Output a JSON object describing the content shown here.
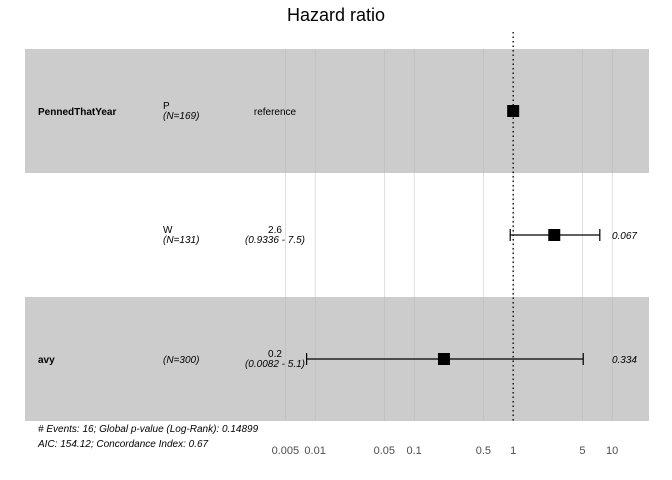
{
  "chart_data": {
    "type": "forest",
    "title": "Hazard ratio",
    "x_scale": "log",
    "xlim": [
      0.0035,
      17
    ],
    "x_ticks": [
      {
        "value": 0.005,
        "label": "0.005"
      },
      {
        "value": 0.01,
        "label": "0.01"
      },
      {
        "value": 0.05,
        "label": "0.05"
      },
      {
        "value": 0.1,
        "label": "0.1"
      },
      {
        "value": 0.5,
        "label": "0.5"
      },
      {
        "value": 1,
        "label": "1"
      },
      {
        "value": 5,
        "label": "5"
      },
      {
        "value": 10,
        "label": "10"
      }
    ],
    "reference_line": 1,
    "rows": [
      {
        "variable": "PennedThatYear",
        "level": "P",
        "n": "(N=169)",
        "estimate_text": "reference",
        "ci_text": "",
        "hr": 1,
        "lower": null,
        "upper": null,
        "p": "",
        "shaded": true
      },
      {
        "variable": "",
        "level": "W",
        "n": "(N=131)",
        "estimate_text": "2.6",
        "ci_text": "(0.9336 - 7.5)",
        "hr": 2.6,
        "lower": 0.9336,
        "upper": 7.5,
        "p": "0.067",
        "shaded": false
      },
      {
        "variable": "avy",
        "level": "",
        "n": "(N=300)",
        "estimate_text": "0.2",
        "ci_text": "(0.0082 - 5.1)",
        "hr": 0.2,
        "lower": 0.0082,
        "upper": 5.1,
        "p": "0.334",
        "shaded": true
      }
    ],
    "footer": [
      "# Events: 16; Global p-value (Log-Rank): 0.14899",
      "AIC: 154.12; Concordance Index: 0.67"
    ]
  }
}
